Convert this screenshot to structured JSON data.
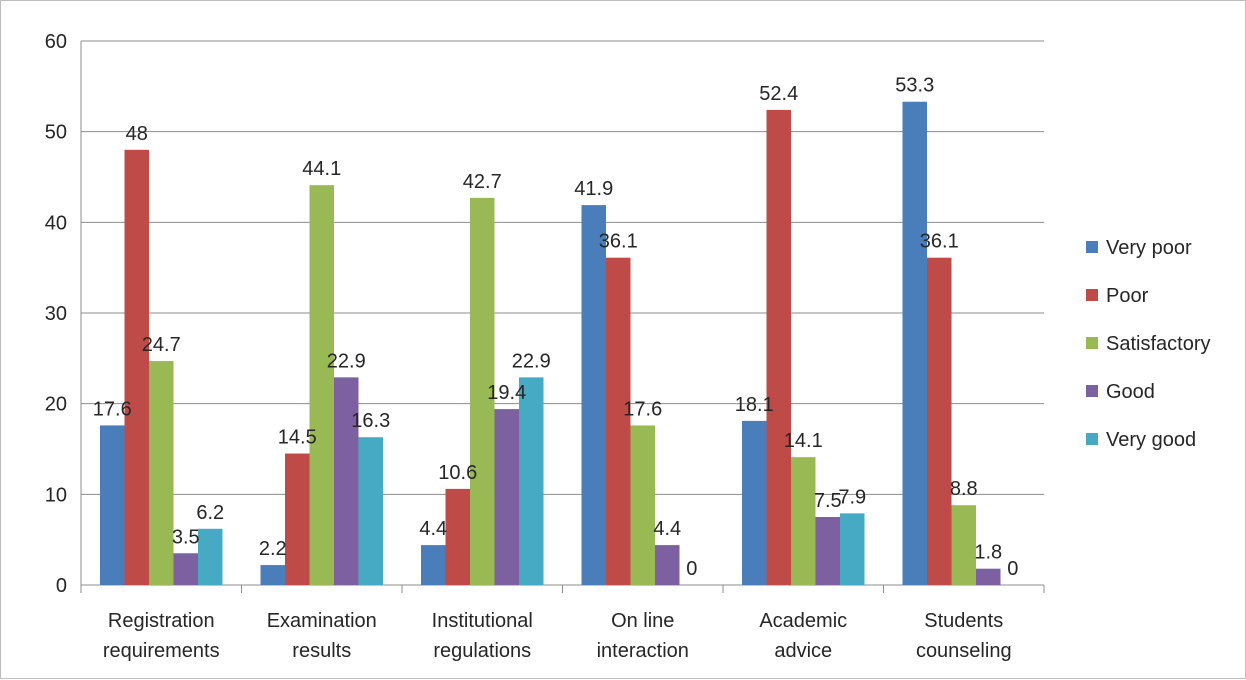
{
  "chart_data": {
    "type": "bar",
    "title": "",
    "xlabel": "",
    "ylabel": "",
    "ylim": [
      0,
      60
    ],
    "yticks": [
      0,
      10,
      20,
      30,
      40,
      50,
      60
    ],
    "grid": "horizontal",
    "legend_position": "right",
    "categories": [
      [
        "Registration",
        "requirements"
      ],
      [
        "Examination",
        "results"
      ],
      [
        "Institutional",
        "regulations"
      ],
      [
        "On line",
        "interaction"
      ],
      [
        "Academic",
        "advice"
      ],
      [
        "Students",
        "counseling"
      ]
    ],
    "series": [
      {
        "name": "Very poor",
        "color": "#4a7ebb",
        "values": [
          17.6,
          2.2,
          4.4,
          41.9,
          18.1,
          53.3
        ]
      },
      {
        "name": "Poor",
        "color": "#be4b48",
        "values": [
          48,
          14.5,
          10.6,
          36.1,
          52.4,
          36.1
        ]
      },
      {
        "name": "Satisfactory",
        "color": "#98b954",
        "values": [
          24.7,
          44.1,
          42.7,
          17.6,
          14.1,
          8.8
        ]
      },
      {
        "name": "Good",
        "color": "#7d60a0",
        "values": [
          3.5,
          22.9,
          19.4,
          4.4,
          7.5,
          1.8
        ]
      },
      {
        "name": "Very good",
        "color": "#46aac5",
        "values": [
          6.2,
          16.3,
          22.9,
          0,
          7.9,
          0
        ]
      }
    ]
  }
}
